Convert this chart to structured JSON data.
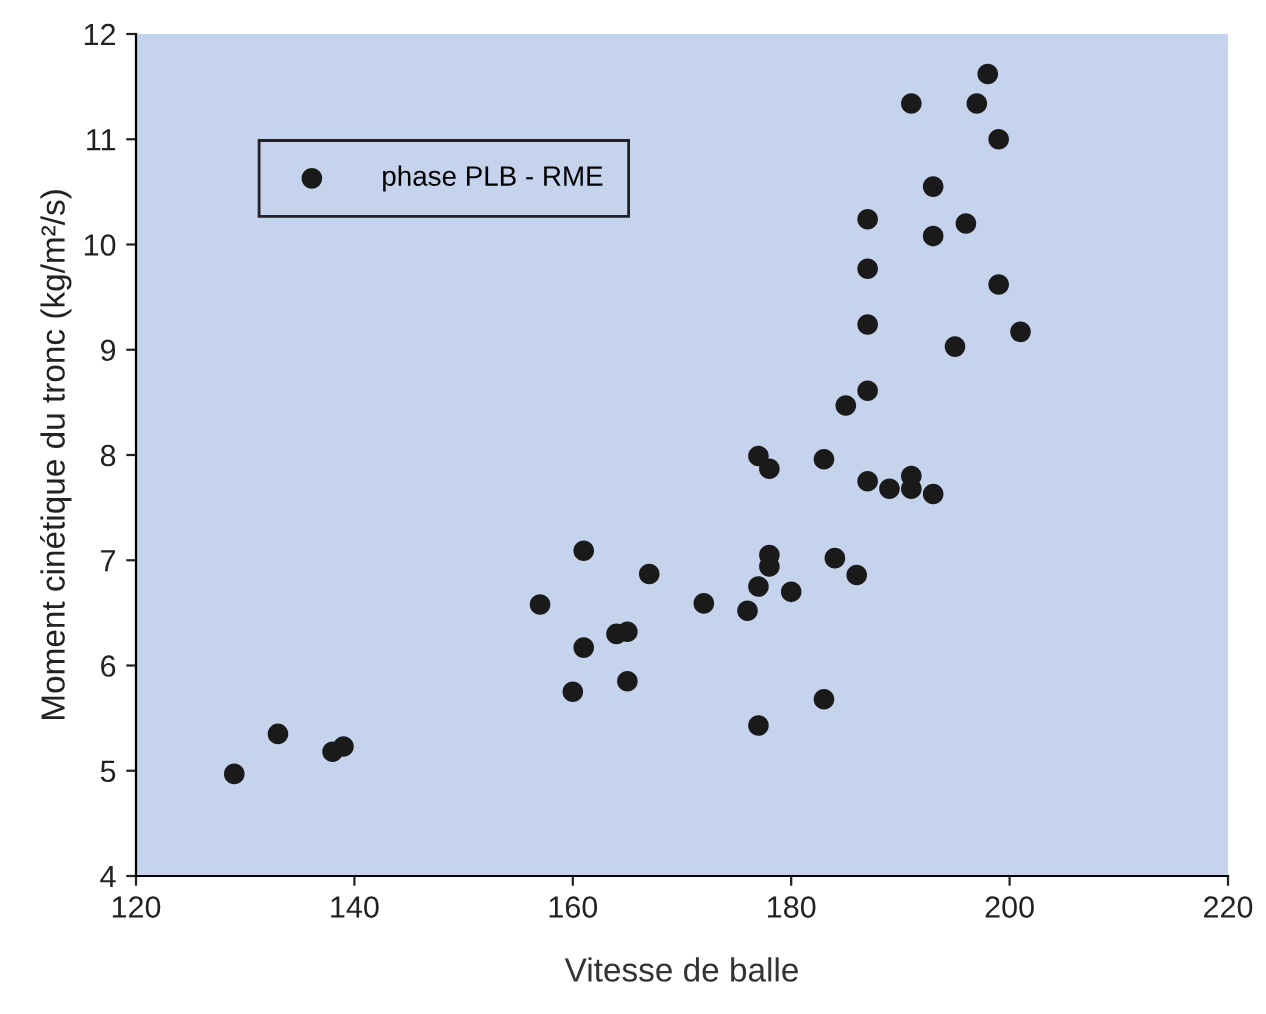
{
  "chart_data": {
    "type": "scatter",
    "xlabel": "Vitesse de balle",
    "ylabel": "Moment cinétique du tronc (kg/m²/s)",
    "xlim": [
      120,
      220
    ],
    "ylim": [
      4,
      12
    ],
    "xticks": [
      120,
      140,
      160,
      180,
      200,
      220
    ],
    "yticks": [
      4,
      5,
      6,
      7,
      8,
      9,
      10,
      11,
      12
    ],
    "grid": false,
    "legend": "top left",
    "marker": "circle",
    "series": [
      {
        "name": "phase PLB - RME",
        "color": "#1a1a1a",
        "x": [
          129,
          133,
          138,
          139,
          157,
          160,
          161,
          161,
          164,
          165,
          165,
          167,
          172,
          176,
          177,
          177,
          177,
          178,
          178,
          178,
          180,
          183,
          183,
          184,
          186,
          185,
          187,
          187,
          187,
          187,
          187,
          189,
          191,
          191,
          193,
          191,
          193,
          193,
          196,
          195,
          197,
          198,
          199,
          199,
          201
        ],
        "values": [
          4.97,
          5.35,
          5.18,
          5.23,
          6.58,
          5.75,
          7.09,
          6.17,
          6.3,
          6.32,
          5.85,
          6.87,
          6.59,
          6.52,
          7.99,
          6.75,
          5.43,
          7.87,
          7.05,
          6.94,
          6.7,
          7.96,
          5.68,
          7.02,
          6.86,
          8.47,
          8.61,
          7.75,
          9.24,
          9.77,
          10.24,
          7.68,
          7.8,
          7.68,
          7.63,
          11.34,
          10.55,
          10.08,
          10.2,
          9.03,
          11.34,
          11.62,
          11.0,
          9.62,
          9.17
        ]
      }
    ]
  }
}
